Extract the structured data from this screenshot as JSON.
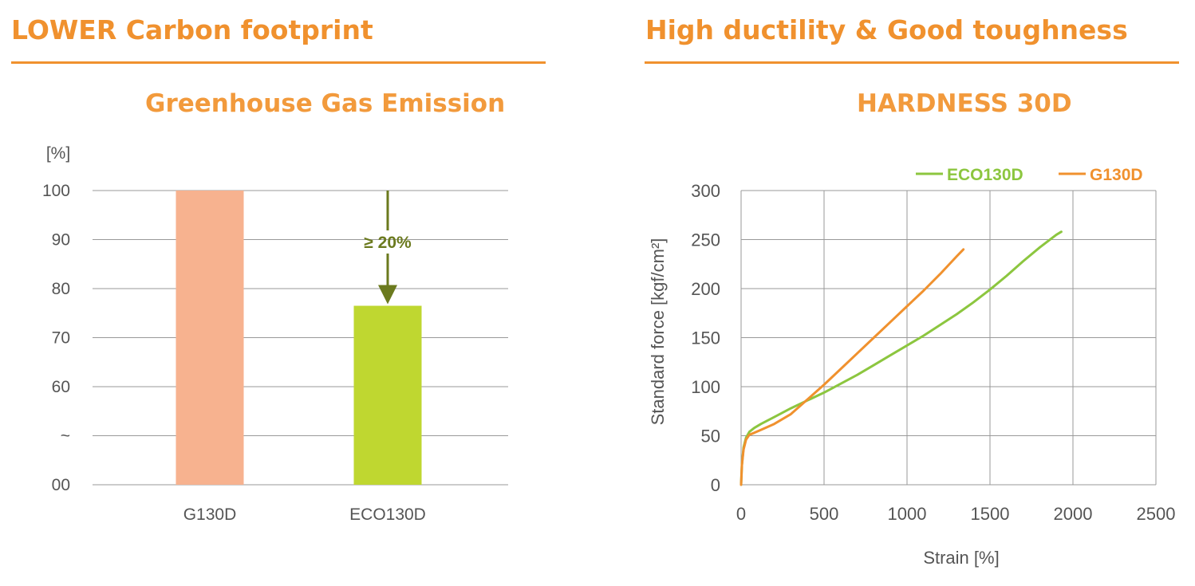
{
  "left_section": {
    "heading": "LOWER Carbon footprint"
  },
  "right_section": {
    "heading": "High ductility & Good toughness"
  },
  "colors": {
    "accent": "#F0912E",
    "g130d_bar": "#F7B28F",
    "eco130d_bar": "#BFD730",
    "arrow": "#6B7A1E",
    "eco_line": "#8CC63F",
    "g_line": "#F0912E",
    "grid": "#999999"
  },
  "chart_data": [
    {
      "type": "bar",
      "title": "Greenhouse Gas Emission",
      "ylabel": "[%]",
      "categories": [
        "G130D",
        "ECO130D"
      ],
      "values": [
        100,
        76.5
      ],
      "yticks": [
        "100",
        "90",
        "80",
        "70",
        "60",
        "~",
        "00"
      ],
      "ylim": [
        40,
        100
      ],
      "annotation": "≥ 20%"
    },
    {
      "type": "line",
      "title": "HARDNESS 30D",
      "xlabel": "Strain [%]",
      "ylabel": "Standard force [kgf/cm²]",
      "xlim": [
        0,
        2500
      ],
      "ylim": [
        0,
        300
      ],
      "xticks": [
        "0",
        "500",
        "1000",
        "1500",
        "2000",
        "2500"
      ],
      "yticks": [
        "0",
        "50",
        "100",
        "150",
        "200",
        "250",
        "300"
      ],
      "legend_position": "top-right",
      "series": [
        {
          "name": "ECO130D",
          "x": [
            0,
            5,
            15,
            30,
            50,
            80,
            120,
            200,
            300,
            400,
            500,
            600,
            700,
            800,
            900,
            1000,
            1100,
            1200,
            1300,
            1400,
            1500,
            1600,
            1700,
            1800,
            1900,
            1930
          ],
          "y": [
            0,
            20,
            38,
            48,
            54,
            58,
            62,
            69,
            78,
            86,
            94,
            103,
            112,
            122,
            132,
            142,
            152,
            163,
            174,
            186,
            199,
            213,
            228,
            242,
            255,
            258
          ]
        },
        {
          "name": "G130D",
          "x": [
            0,
            5,
            15,
            30,
            50,
            80,
            120,
            200,
            300,
            400,
            500,
            600,
            700,
            800,
            900,
            1000,
            1100,
            1200,
            1250,
            1300,
            1340
          ],
          "y": [
            0,
            20,
            36,
            46,
            51,
            53,
            56,
            62,
            72,
            87,
            102,
            118,
            134,
            150,
            166,
            182,
            198,
            215,
            224,
            233,
            240
          ]
        }
      ]
    }
  ]
}
